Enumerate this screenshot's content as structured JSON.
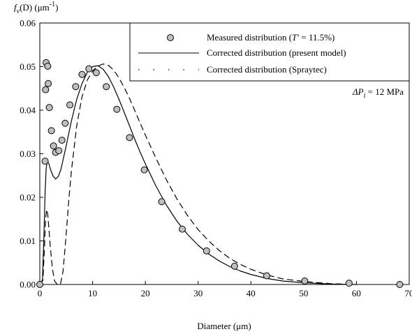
{
  "chart_data": {
    "type": "scatter",
    "ylabel_main": "f",
    "ylabel_sub": "v",
    "ylabel_rest": "(D) (μm",
    "ylabel_sup": "-1",
    "ylabel_close": ")",
    "xlabel": "Diameter (μm)",
    "xlim": [
      0,
      70
    ],
    "ylim": [
      0,
      0.06
    ],
    "x_ticks": [
      "0",
      "10",
      "20",
      "30",
      "40",
      "50",
      "60",
      "70"
    ],
    "y_ticks": [
      "0.00",
      "0.01",
      "0.02",
      "0.03",
      "0.04",
      "0.05",
      "0.06"
    ],
    "grid": false,
    "legend_position": "top-right",
    "legend": {
      "measured_prefix": "Measured distribution (",
      "measured_var": "T′",
      "measured_suffix": " = 11.5%)",
      "present_model": "Corrected distribution (present model)",
      "spraytec": "Corrected distribution (Spraytec)"
    },
    "annotation": {
      "prefix": "ΔP",
      "sub": "i",
      "suffix": " = 12 MPa"
    },
    "series": [
      {
        "name": "Measured distribution (T′ = 11.5%)",
        "style": "markers",
        "marker_fill": "#bfbfbf",
        "points": [
          [
            0.0,
            0.0
          ],
          [
            1.0,
            0.0283
          ],
          [
            1.1,
            0.0447
          ],
          [
            1.2,
            0.0509
          ],
          [
            1.5,
            0.0501
          ],
          [
            1.6,
            0.0461
          ],
          [
            1.8,
            0.0406
          ],
          [
            2.2,
            0.0353
          ],
          [
            2.6,
            0.0318
          ],
          [
            3.0,
            0.0303
          ],
          [
            3.6,
            0.0307
          ],
          [
            4.2,
            0.0331
          ],
          [
            4.8,
            0.037
          ],
          [
            5.7,
            0.0412
          ],
          [
            6.8,
            0.0454
          ],
          [
            8.0,
            0.0482
          ],
          [
            9.3,
            0.0495
          ],
          [
            10.7,
            0.0486
          ],
          [
            12.6,
            0.0454
          ],
          [
            14.6,
            0.0402
          ],
          [
            17.0,
            0.0337
          ],
          [
            19.8,
            0.0263
          ],
          [
            23.1,
            0.019
          ],
          [
            27.0,
            0.0127
          ],
          [
            31.6,
            0.0077
          ],
          [
            36.9,
            0.0042
          ],
          [
            43.0,
            0.002
          ],
          [
            50.2,
            0.0008
          ],
          [
            58.6,
            0.0003
          ],
          [
            68.2,
            0.0
          ]
        ]
      },
      {
        "name": "Corrected distribution (present model)",
        "style": "solid",
        "points": [
          [
            0.0,
            0.0
          ],
          [
            0.5,
            0.001
          ],
          [
            0.8,
            0.012
          ],
          [
            1.0,
            0.021
          ],
          [
            1.2,
            0.0265
          ],
          [
            1.4,
            0.0282
          ],
          [
            1.7,
            0.0278
          ],
          [
            2.0,
            0.0265
          ],
          [
            2.5,
            0.0249
          ],
          [
            3.0,
            0.0242
          ],
          [
            3.5,
            0.0248
          ],
          [
            4.0,
            0.0264
          ],
          [
            5.0,
            0.0318
          ],
          [
            6.0,
            0.0376
          ],
          [
            7.0,
            0.0425
          ],
          [
            8.0,
            0.0461
          ],
          [
            9.0,
            0.0487
          ],
          [
            10.0,
            0.05
          ],
          [
            11.0,
            0.0502
          ],
          [
            12.0,
            0.0494
          ],
          [
            13.0,
            0.0477
          ],
          [
            14.0,
            0.0453
          ],
          [
            15.0,
            0.0425
          ],
          [
            16.0,
            0.0395
          ],
          [
            17.0,
            0.0364
          ],
          [
            18.0,
            0.0333
          ],
          [
            19.0,
            0.0304
          ],
          [
            20.0,
            0.0277
          ],
          [
            22.0,
            0.0226
          ],
          [
            24.0,
            0.0182
          ],
          [
            26.0,
            0.0145
          ],
          [
            28.0,
            0.0115
          ],
          [
            30.0,
            0.009
          ],
          [
            32.0,
            0.007
          ],
          [
            34.0,
            0.0054
          ],
          [
            36.0,
            0.0041
          ],
          [
            38.0,
            0.0031
          ],
          [
            40.0,
            0.0023
          ],
          [
            43.0,
            0.0014
          ],
          [
            46.0,
            0.0008
          ],
          [
            50.0,
            0.0004
          ],
          [
            55.0,
            0.0001
          ],
          [
            60.0,
            0.0
          ]
        ]
      },
      {
        "name": "Corrected distribution (Spraytec)",
        "style": "dashed",
        "points": [
          [
            0.0,
            0.0
          ],
          [
            0.6,
            0.001
          ],
          [
            0.9,
            0.009
          ],
          [
            1.1,
            0.015
          ],
          [
            1.3,
            0.0172
          ],
          [
            1.5,
            0.0162
          ],
          [
            1.7,
            0.0132
          ],
          [
            2.0,
            0.0085
          ],
          [
            2.4,
            0.0035
          ],
          [
            2.8,
            0.0008
          ],
          [
            3.3,
            0.0
          ],
          [
            3.9,
            0.0
          ],
          [
            4.4,
            0.003
          ],
          [
            5.0,
            0.0115
          ],
          [
            5.5,
            0.0195
          ],
          [
            6.0,
            0.0262
          ],
          [
            7.0,
            0.0365
          ],
          [
            8.0,
            0.0431
          ],
          [
            9.0,
            0.0469
          ],
          [
            10.0,
            0.049
          ],
          [
            11.0,
            0.0501
          ],
          [
            12.0,
            0.0506
          ],
          [
            13.0,
            0.0503
          ],
          [
            14.0,
            0.0492
          ],
          [
            15.0,
            0.0474
          ],
          [
            16.0,
            0.0452
          ],
          [
            17.0,
            0.0427
          ],
          [
            18.0,
            0.0399
          ],
          [
            19.0,
            0.0371
          ],
          [
            20.0,
            0.0343
          ],
          [
            22.0,
            0.029
          ],
          [
            24.0,
            0.024
          ],
          [
            26.0,
            0.0196
          ],
          [
            28.0,
            0.0158
          ],
          [
            30.0,
            0.0126
          ],
          [
            32.0,
            0.01
          ],
          [
            34.0,
            0.0078
          ],
          [
            36.0,
            0.006
          ],
          [
            38.0,
            0.0046
          ],
          [
            40.0,
            0.0035
          ],
          [
            43.0,
            0.0022
          ],
          [
            46.0,
            0.0013
          ],
          [
            50.0,
            0.0007
          ],
          [
            55.0,
            0.0002
          ],
          [
            60.0,
            0.0
          ]
        ]
      }
    ]
  }
}
